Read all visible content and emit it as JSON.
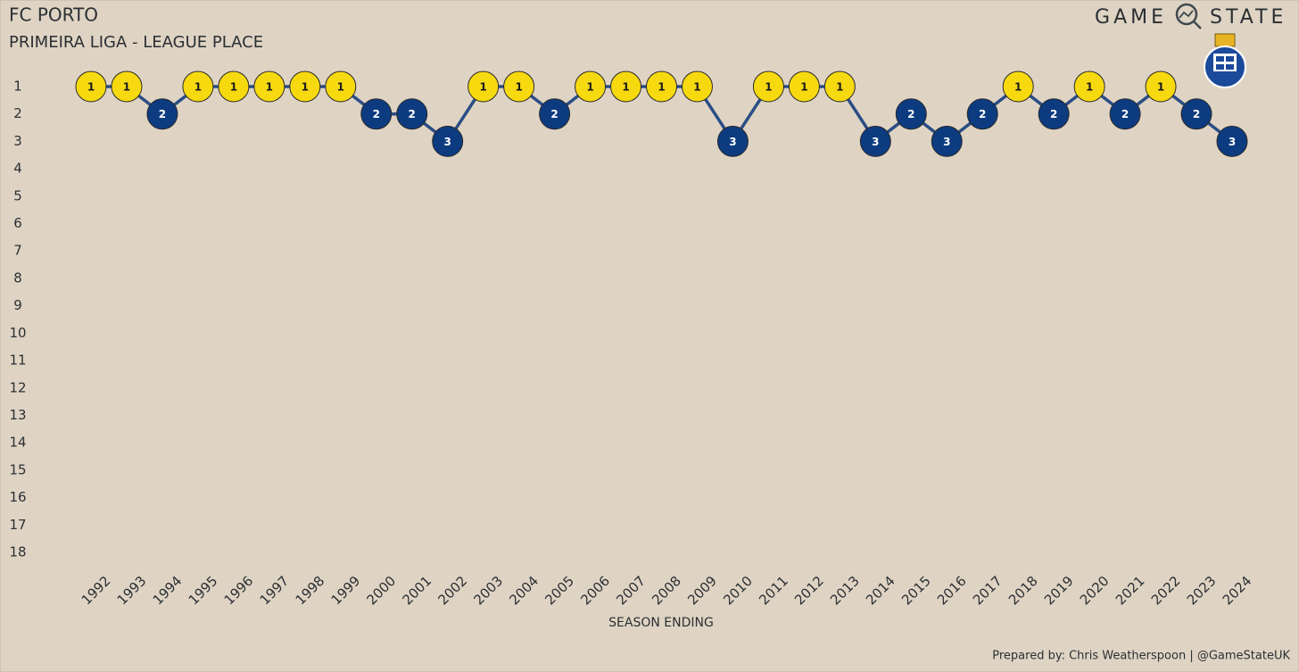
{
  "chart_data": {
    "type": "line",
    "title": "FC PORTO",
    "subtitle": "PRIMEIRA LIGA - LEAGUE PLACE",
    "brand": [
      "GAME",
      "STATE"
    ],
    "x_label": "SEASON ENDING",
    "credit": "Prepared by: Chris Weatherspoon | @GameStateUK",
    "categories": [
      "1992",
      "1993",
      "1994",
      "1995",
      "1996",
      "1997",
      "1998",
      "1999",
      "2000",
      "2001",
      "2002",
      "2003",
      "2004",
      "2005",
      "2006",
      "2007",
      "2008",
      "2009",
      "2010",
      "2011",
      "2012",
      "2013",
      "2014",
      "2015",
      "2016",
      "2017",
      "2018",
      "2019",
      "2020",
      "2021",
      "2022",
      "2023",
      "2024"
    ],
    "series": [
      {
        "name": "FC Porto",
        "color": "#2b4d84",
        "values": [
          1,
          1,
          2,
          1,
          1,
          1,
          1,
          1,
          2,
          2,
          3,
          1,
          1,
          2,
          1,
          1,
          1,
          1,
          3,
          1,
          1,
          1,
          3,
          2,
          3,
          2,
          1,
          2,
          1,
          2,
          1,
          2,
          3
        ],
        "marker_colors": [
          "#f7d90f",
          "#f7d90f",
          "#0d3b80",
          "#f7d90f",
          "#f7d90f",
          "#f7d90f",
          "#f7d90f",
          "#f7d90f",
          "#0d3b80",
          "#0d3b80",
          "#0d3b80",
          "#f7d90f",
          "#f7d90f",
          "#0d3b80",
          "#f7d90f",
          "#f7d90f",
          "#f7d90f",
          "#f7d90f",
          "#0d3b80",
          "#f7d90f",
          "#f7d90f",
          "#f7d90f",
          "#0d3b80",
          "#0d3b80",
          "#0d3b80",
          "#0d3b80",
          "#f7d90f",
          "#0d3b80",
          "#f7d90f",
          "#0d3b80",
          "#f7d90f",
          "#0d3b80",
          "#0d3b80"
        ],
        "label_colors": [
          "#1a1a1a",
          "#1a1a1a",
          "#ffffff",
          "#1a1a1a",
          "#1a1a1a",
          "#1a1a1a",
          "#1a1a1a",
          "#1a1a1a",
          "#ffffff",
          "#ffffff",
          "#ffffff",
          "#1a1a1a",
          "#1a1a1a",
          "#ffffff",
          "#1a1a1a",
          "#1a1a1a",
          "#1a1a1a",
          "#1a1a1a",
          "#ffffff",
          "#1a1a1a",
          "#1a1a1a",
          "#1a1a1a",
          "#ffffff",
          "#ffffff",
          "#ffffff",
          "#ffffff",
          "#1a1a1a",
          "#ffffff",
          "#1a1a1a",
          "#ffffff",
          "#1a1a1a",
          "#ffffff",
          "#ffffff"
        ]
      }
    ],
    "ylim": [
      18,
      1
    ],
    "yticks": [
      1,
      2,
      3,
      4,
      5,
      6,
      7,
      8,
      9,
      10,
      11,
      12,
      13,
      14,
      15,
      16,
      17,
      18
    ],
    "grid": false
  }
}
